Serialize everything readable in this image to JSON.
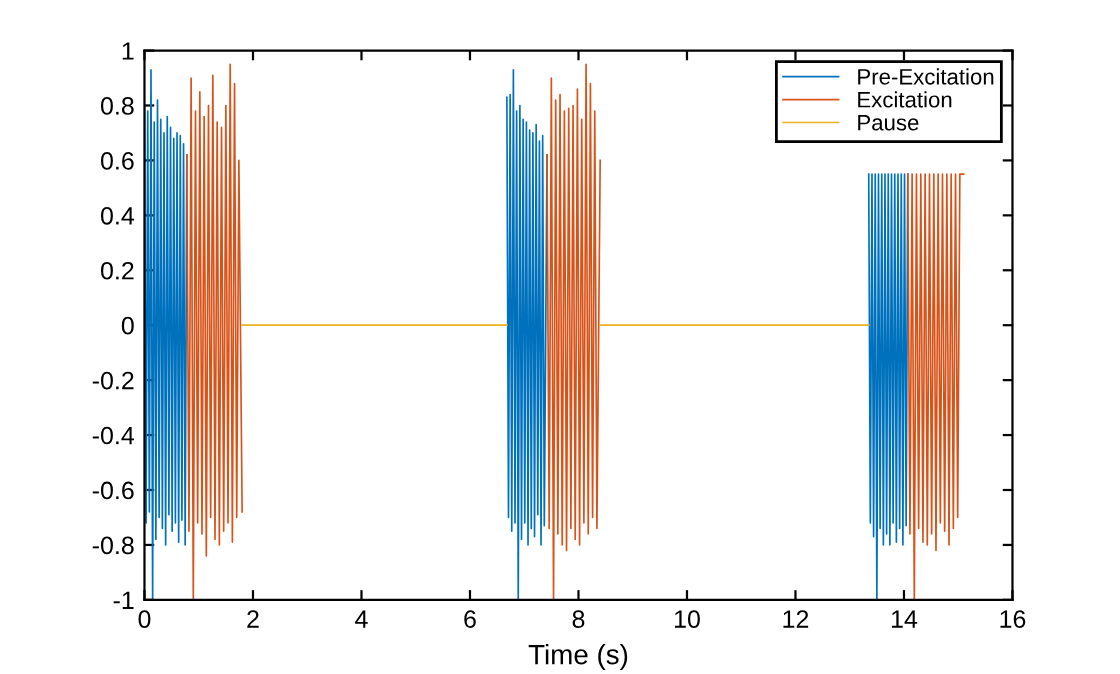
{
  "chart_data": {
    "type": "line",
    "xlabel": "Time (s)",
    "xlim": [
      0,
      16
    ],
    "ylim": [
      -1,
      1
    ],
    "xticks": [
      0,
      2,
      4,
      6,
      8,
      10,
      12,
      14,
      16
    ],
    "yticks": [
      -1,
      -0.8,
      -0.6,
      -0.4,
      -0.2,
      0,
      0.2,
      0.4,
      0.6,
      0.8,
      1
    ],
    "legend": "top right",
    "grid": false,
    "marker": "none",
    "line_style": "solid",
    "series": [
      {
        "name": "Pre-Excitation",
        "color": "#0072bd",
        "x": [
          0.0,
          0.03,
          0.06,
          0.09,
          0.12,
          0.15,
          0.18,
          0.21,
          0.24,
          0.27,
          0.3,
          0.33,
          0.36,
          0.39,
          0.42,
          0.45,
          0.48,
          0.51,
          0.54,
          0.57,
          0.6,
          0.63,
          0.66,
          0.69,
          0.72,
          0.75,
          0.78,
          null,
          6.68,
          6.71,
          6.74,
          6.77,
          6.8,
          6.83,
          6.86,
          6.89,
          6.92,
          6.95,
          6.98,
          7.01,
          7.04,
          7.07,
          7.1,
          7.13,
          7.16,
          7.19,
          7.22,
          7.25,
          7.28,
          7.31,
          7.34,
          7.37,
          7.42,
          null,
          13.35,
          13.38,
          13.41,
          13.44,
          13.47,
          13.5,
          13.53,
          13.56,
          13.59,
          13.62,
          13.65,
          13.68,
          13.71,
          13.74,
          13.77,
          13.8,
          13.83,
          13.86,
          13.89,
          13.92,
          13.95,
          13.98,
          14.01,
          14.04,
          14.07
        ],
        "values": [
          0.8,
          -0.72,
          0.78,
          -0.68,
          0.93,
          -1.0,
          0.74,
          -0.78,
          0.82,
          -0.7,
          0.75,
          -0.74,
          0.7,
          -0.8,
          0.76,
          -0.69,
          0.72,
          -0.75,
          0.68,
          -0.72,
          0.7,
          -0.79,
          0.69,
          -0.71,
          0.66,
          -0.8,
          0.62,
          null,
          0.83,
          -0.7,
          0.84,
          -0.75,
          0.93,
          -0.72,
          0.78,
          -1.0,
          0.8,
          -0.78,
          0.75,
          -0.72,
          0.74,
          -0.8,
          0.71,
          -0.74,
          0.7,
          -0.77,
          0.73,
          -0.69,
          0.67,
          -0.8,
          0.69,
          -0.73,
          0.62,
          null,
          0.55,
          -0.72,
          0.55,
          -0.77,
          0.55,
          -1.0,
          0.55,
          -0.74,
          0.55,
          -0.8,
          0.55,
          -0.76,
          0.55,
          -0.8,
          0.55,
          -0.72,
          0.55,
          -0.79,
          0.55,
          -0.74,
          0.55,
          -0.8,
          0.55,
          -0.73,
          0.55
        ]
      },
      {
        "name": "Excitation",
        "color": "#d95319",
        "x": [
          0.78,
          0.82,
          0.86,
          0.9,
          0.94,
          0.98,
          1.02,
          1.06,
          1.1,
          1.14,
          1.18,
          1.22,
          1.26,
          1.3,
          1.34,
          1.38,
          1.42,
          1.46,
          1.5,
          1.54,
          1.58,
          1.62,
          1.66,
          1.7,
          1.74,
          1.8,
          null,
          7.42,
          7.46,
          7.5,
          7.54,
          7.58,
          7.62,
          7.66,
          7.7,
          7.74,
          7.78,
          7.82,
          7.86,
          7.9,
          7.94,
          7.98,
          8.02,
          8.06,
          8.1,
          8.14,
          8.18,
          8.22,
          8.26,
          8.3,
          8.34,
          8.4,
          null,
          14.07,
          14.11,
          14.15,
          14.19,
          14.23,
          14.27,
          14.31,
          14.35,
          14.39,
          14.43,
          14.47,
          14.51,
          14.55,
          14.59,
          14.63,
          14.67,
          14.71,
          14.75,
          14.79,
          14.83,
          14.87,
          14.91,
          14.95,
          14.99,
          15.03,
          15.1
        ],
        "values": [
          0.62,
          -0.75,
          0.9,
          -1.0,
          0.78,
          -0.72,
          0.85,
          -0.76,
          0.76,
          -0.84,
          0.8,
          -0.7,
          0.91,
          -0.78,
          0.74,
          -0.8,
          0.72,
          -0.75,
          0.8,
          -0.72,
          0.95,
          -0.79,
          0.88,
          -0.7,
          0.6,
          -0.68,
          null,
          0.62,
          -0.74,
          0.9,
          -1.0,
          0.82,
          -0.76,
          0.84,
          -0.8,
          0.78,
          -0.82,
          0.79,
          -0.74,
          0.8,
          -0.78,
          0.86,
          -0.8,
          0.75,
          -0.72,
          0.95,
          -0.76,
          0.88,
          -0.7,
          0.78,
          -0.74,
          0.6,
          null,
          0.55,
          -0.76,
          0.55,
          -1.0,
          0.55,
          -0.74,
          0.55,
          -0.79,
          0.55,
          -0.8,
          0.55,
          -0.76,
          0.55,
          -0.82,
          0.55,
          -0.72,
          0.55,
          -0.75,
          0.55,
          -0.8,
          0.55,
          -0.74,
          0.55,
          -0.7,
          0.55,
          0.55
        ]
      },
      {
        "name": "Pause",
        "color": "#edb120",
        "x": [
          1.8,
          6.68,
          null,
          8.4,
          13.35
        ],
        "values": [
          0,
          0,
          null,
          0,
          0
        ]
      }
    ]
  }
}
